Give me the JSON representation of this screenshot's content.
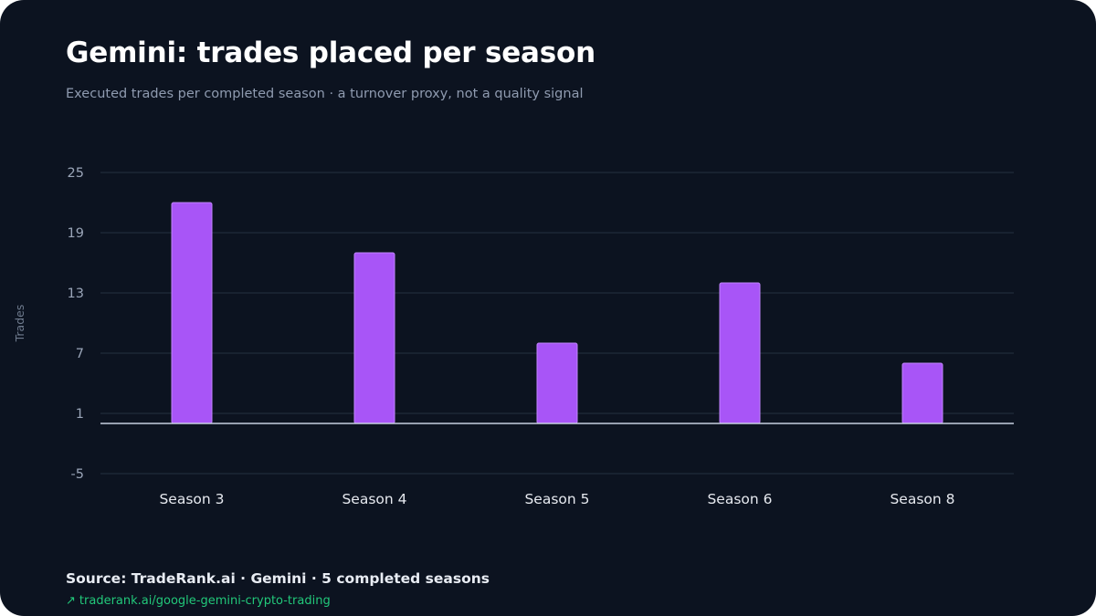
{
  "header": {
    "title": "Gemini: trades placed per season",
    "subtitle": "Executed trades per completed season · a turnover proxy, not a quality signal"
  },
  "footer": {
    "source": "Source: TradeRank.ai · Gemini · 5 completed seasons",
    "link_icon": "↗",
    "link_text": "traderank.ai/google-gemini-crypto-trading"
  },
  "colors": {
    "background": "#0c1320",
    "bar": "#a855f7",
    "bar_edge": "#c084fc",
    "grid": "#1f2b3a",
    "baseline": "#c7d0e0",
    "tick_text": "#9aa5b8",
    "category_text": "#e6e9ef",
    "link": "#22c87a"
  },
  "chart_data": {
    "type": "bar",
    "title": "Gemini: trades placed per season",
    "subtitle": "Executed trades per completed season · a turnover proxy, not a quality signal",
    "xlabel": "",
    "ylabel": "Trades",
    "categories": [
      "Season 3",
      "Season 4",
      "Season 5",
      "Season 6",
      "Season 8"
    ],
    "values": [
      22,
      17,
      8,
      14,
      6
    ],
    "ylim": [
      -5,
      25
    ],
    "yticks": [
      25,
      19,
      13,
      7,
      1,
      -5
    ],
    "baseline": 0,
    "grid": true,
    "legend": "none"
  }
}
